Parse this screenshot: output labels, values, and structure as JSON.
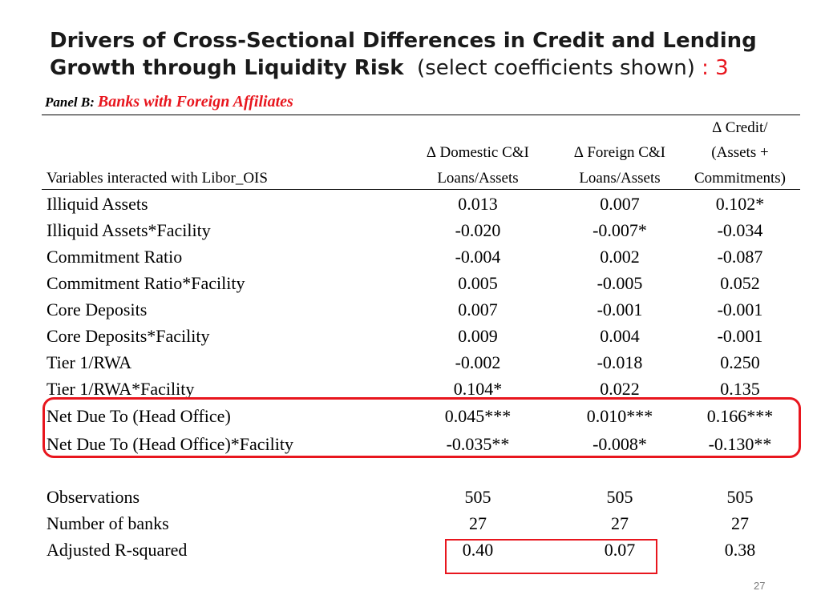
{
  "title": {
    "line1": "Drivers of Cross-Sectional Differences in Credit and Lending",
    "line2_bold": "Growth through Liquidity Risk",
    "line2_normal": "(select coefficients shown)",
    "line2_suffix": ": 3"
  },
  "panel": {
    "prefix": "Panel B:",
    "name": "Banks with Foreign Affiliates"
  },
  "table": {
    "header": {
      "variables": "Variables interacted with Libor_OIS",
      "col1": [
        "∆ Domestic C&I",
        "Loans/Assets"
      ],
      "col2": [
        "∆ Foreign C&I",
        "Loans/Assets"
      ],
      "col3": [
        "∆ Credit/",
        "(Assets +",
        "Commitments)"
      ]
    },
    "rows": [
      {
        "label": "Illiquid Assets",
        "v1": "0.013",
        "v2": "0.007",
        "v3": "0.102*"
      },
      {
        "label": "Illiquid Assets*Facility",
        "v1": "-0.020",
        "v2": "-0.007*",
        "v3": "-0.034"
      },
      {
        "label": "Commitment Ratio",
        "v1": "-0.004",
        "v2": "0.002",
        "v3": "-0.087"
      },
      {
        "label": "Commitment Ratio*Facility",
        "v1": "0.005",
        "v2": "-0.005",
        "v3": "0.052"
      },
      {
        "label": "Core Deposits",
        "v1": "0.007",
        "v2": "-0.001",
        "v3": "-0.001"
      },
      {
        "label": "Core Deposits*Facility",
        "v1": "0.009",
        "v2": "0.004",
        "v3": "-0.001"
      },
      {
        "label": "Tier 1/RWA",
        "v1": "-0.002",
        "v2": "-0.018",
        "v3": "0.250"
      },
      {
        "label": "Tier 1/RWA*Facility",
        "v1": "0.104*",
        "v2": "0.022",
        "v3": "0.135"
      },
      {
        "label": "Net Due To (Head Office)",
        "v1": "0.045***",
        "v2": "0.010***",
        "v3": "0.166***"
      },
      {
        "label": "Net Due To (Head Office)*Facility",
        "v1": "-0.035**",
        "v2": "-0.008*",
        "v3": "-0.130**"
      }
    ],
    "stats": [
      {
        "label": "Observations",
        "v1": "505",
        "v2": "505",
        "v3": "505"
      },
      {
        "label": "Number of banks",
        "v1": "27",
        "v2": "27",
        "v3": "27"
      },
      {
        "label": "Adjusted R-squared",
        "v1": "0.40",
        "v2": "0.07",
        "v3": "0.38"
      }
    ]
  },
  "colors": {
    "accent": "#e8161e",
    "page_number": "#7a7a7a"
  },
  "page_number": "27"
}
